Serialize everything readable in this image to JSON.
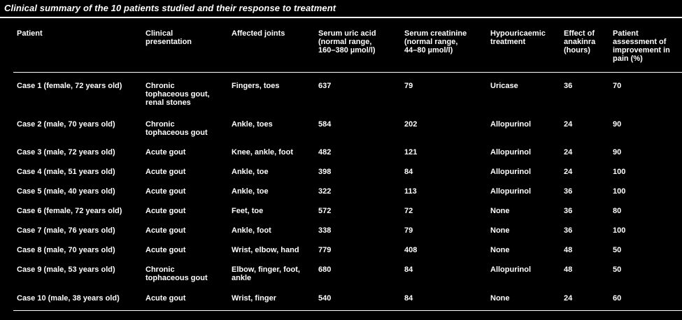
{
  "title": "Clinical summary of the 10 patients studied and their response to treatment",
  "headers": [
    "Patient",
    "Clinical\npresentation",
    "Affected joints",
    "Serum uric acid\n(normal range,\n160–380 µmol/l)",
    "Serum creatinine\n(normal range,\n44–80 µmol/l)",
    "Hypouricaemic\ntreatment",
    "Effect of\nanakinra\n(hours)",
    "Patient\nassessment of\nimprovement in\npain (%)"
  ],
  "rows": [
    [
      "Case 1 (female, 72 years old)",
      "Chronic\ntophaceous gout,\nrenal stones",
      "Fingers, toes",
      "637",
      "79",
      "Uricase",
      "36",
      "70"
    ],
    [
      "Case 2 (male, 70 years old)",
      "Chronic\ntophaceous gout",
      "Ankle, toes",
      "584",
      "202",
      "Allopurinol",
      "24",
      "90"
    ],
    [
      "Case 3 (male, 72 years old)",
      "Acute gout",
      "Knee, ankle, foot",
      "482",
      "121",
      "Allopurinol",
      "24",
      "90"
    ],
    [
      "Case 4 (male, 51 years old)",
      "Acute gout",
      "Ankle, toe",
      "398",
      "84",
      "Allopurinol",
      "24",
      "100"
    ],
    [
      "Case 5 (male, 40 years old)",
      "Acute gout",
      "Ankle, toe",
      "322",
      "113",
      "Allopurinol",
      "36",
      "100"
    ],
    [
      "Case 6 (female, 72 years old)",
      "Acute gout",
      "Feet, toe",
      "572",
      "72",
      "None",
      "36",
      "80"
    ],
    [
      "Case 7 (male, 76 years old)",
      "Acute gout",
      "Ankle, foot",
      "338",
      "79",
      "None",
      "36",
      "100"
    ],
    [
      "Case 8 (male, 70 years old)",
      "Acute gout",
      "Wrist, elbow, hand",
      "779",
      "408",
      "None",
      "48",
      "50"
    ],
    [
      "Case 9 (male, 53 years old)",
      "Chronic\ntophaceous gout",
      "Elbow, finger, foot,\nankle",
      "680",
      "84",
      "Allopurinol",
      "48",
      "50"
    ],
    [
      "Case 10 (male, 38 years old)",
      "Acute gout",
      "Wrist, finger",
      "540",
      "84",
      "None",
      "24",
      "60"
    ]
  ]
}
